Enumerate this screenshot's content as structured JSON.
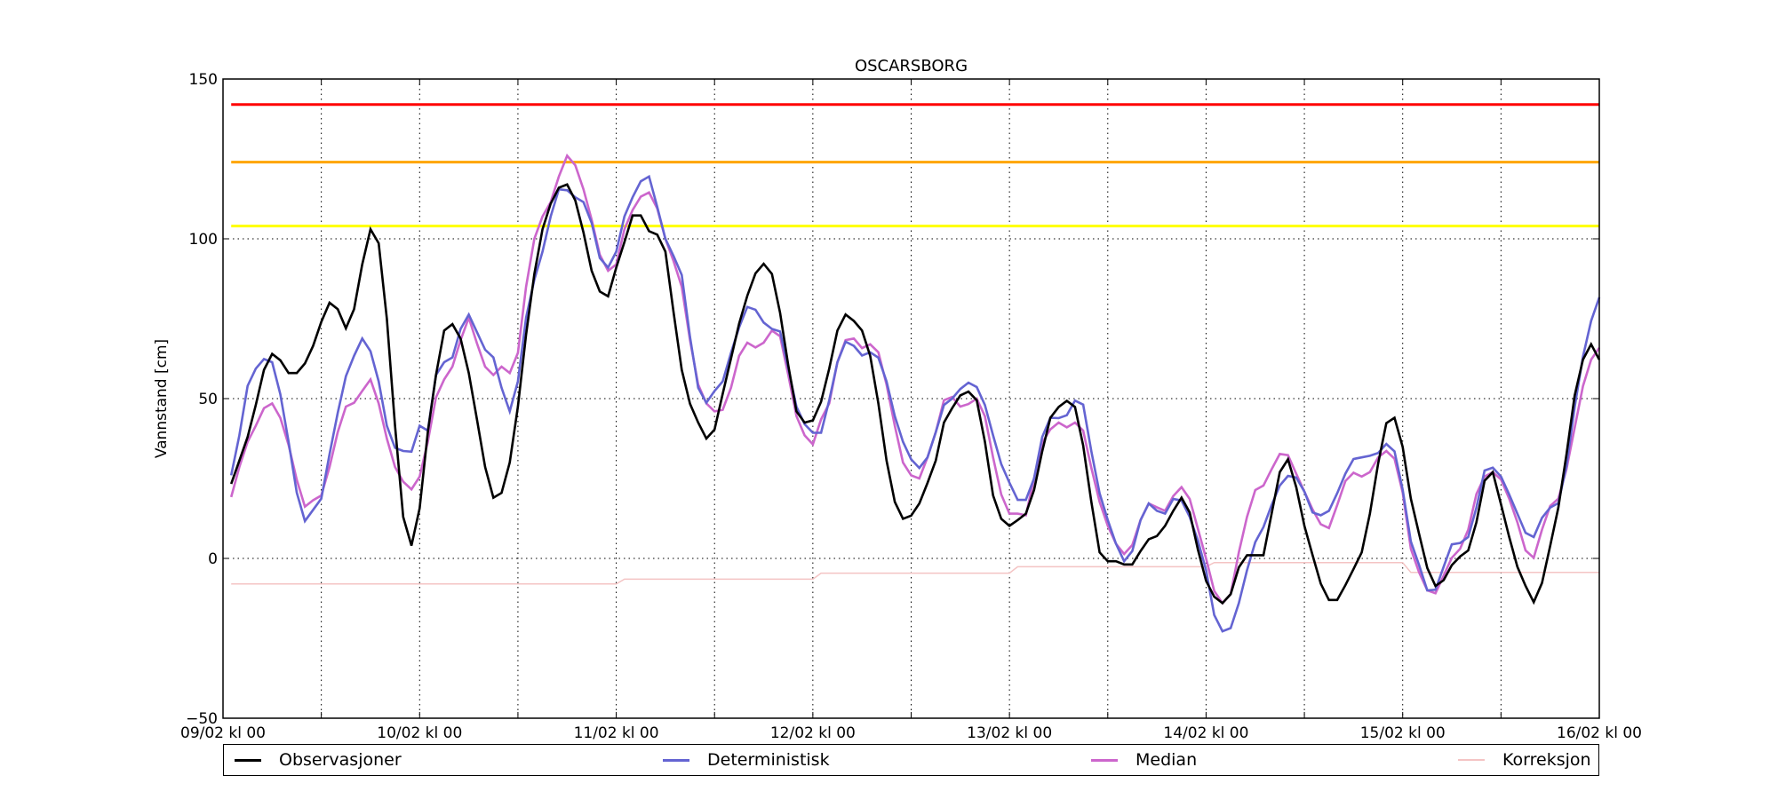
{
  "chart_data": {
    "type": "line",
    "title": "OSCARSBORG",
    "xlabel": "",
    "ylabel": "Vannstand [cm]",
    "ylim": [
      -50,
      150
    ],
    "xlim_hours": [
      0,
      168
    ],
    "x_unit": "hours since 09/02 kl 00 (hourly values, hour 1..168)",
    "grid": true,
    "y_ticks": [
      "150",
      "100",
      "50",
      "0",
      "−50"
    ],
    "y_tick_values": [
      150,
      100,
      50,
      0,
      -50
    ],
    "x_ticks": [
      "09/02 kl 00",
      "10/02 kl 00",
      "11/02 kl 00",
      "12/02 kl 00",
      "13/02 kl 00",
      "14/02 kl 00",
      "15/02 kl 00",
      "16/02 kl 00"
    ],
    "x_tick_hours": [
      0,
      24,
      48,
      72,
      96,
      120,
      144,
      168
    ],
    "thresholds": [
      {
        "value": 142,
        "color": "#ff0000"
      },
      {
        "value": 124,
        "color": "#ffa500"
      },
      {
        "value": 104,
        "color": "#ffff00"
      }
    ],
    "legend_position": "bottom",
    "series": [
      {
        "name": "Observasjoner",
        "color": "#000000",
        "start_hour": 1,
        "values": [
          23.3,
          30.6,
          38,
          48,
          59,
          64,
          62,
          58,
          58,
          61,
          66.5,
          74,
          80,
          78,
          72,
          78,
          92,
          103,
          98.6,
          75,
          41.5,
          13,
          4,
          15.7,
          39.5,
          57.4,
          71.3,
          73.3,
          68.8,
          58,
          43.5,
          28.6,
          19,
          20.5,
          30,
          47.5,
          70,
          89,
          103,
          111,
          116,
          117,
          112,
          102,
          90,
          83.5,
          82,
          91,
          99,
          107.3,
          107.3,
          102.4,
          101.3,
          96,
          77,
          59,
          48.4,
          42.5,
          37.5,
          40.3,
          51.5,
          62.5,
          73.5,
          82.2,
          89.2,
          92.2,
          89,
          76.8,
          60.4,
          46,
          42.5,
          43.2,
          49,
          59.4,
          71.3,
          76.3,
          74.3,
          71.3,
          63.4,
          48.5,
          30.6,
          17.7,
          12.4,
          13.4,
          17.2,
          23.6,
          30.6,
          42.5,
          47,
          51,
          52.2,
          49.5,
          36.5,
          19.7,
          12.4,
          10.2,
          12,
          14,
          21.4,
          33.5,
          44,
          47.4,
          49.3,
          47.4,
          35.3,
          17.7,
          1.9,
          -0.9,
          -0.9,
          -1.9,
          -1.9,
          2.3,
          6,
          7,
          10.2,
          14.9,
          19,
          14.4,
          2.8,
          -7,
          -12,
          -14,
          -11.2,
          -2.8,
          1,
          1,
          1,
          14,
          27,
          31,
          22.3,
          10.2,
          1,
          -7.9,
          -13,
          -13,
          -8.4,
          -3.3,
          1.9,
          14,
          29.7,
          42.3,
          44,
          34.9,
          18.7,
          7.6,
          -3,
          -8.6,
          -6.8,
          -2.1,
          0.6,
          2.5,
          11.3,
          24.3,
          27,
          16.9,
          6.7,
          -2.6,
          -8.6,
          -13.7,
          -7.7,
          3.9,
          15.9,
          32.6,
          51,
          62.2,
          67,
          62.2
        ]
      },
      {
        "name": "Deterministisk",
        "color": "#6464d2",
        "start_hour": 1,
        "values": [
          26,
          38.5,
          54,
          59.4,
          62.4,
          61.4,
          51.4,
          36.5,
          20.6,
          11.7,
          15.2,
          18.7,
          32.6,
          45.5,
          57,
          63.4,
          68.8,
          64.8,
          55.4,
          41.5,
          34.6,
          33.6,
          33.4,
          41.5,
          40,
          57.4,
          61.4,
          62.9,
          71.8,
          76.3,
          70.8,
          65.3,
          62.9,
          53.4,
          46,
          55.4,
          75.3,
          87.2,
          96,
          107,
          115.5,
          115.2,
          113,
          111.5,
          105,
          94,
          91,
          96,
          107,
          113,
          118,
          119.5,
          110,
          100,
          94.6,
          88.7,
          69.3,
          53.4,
          48.7,
          52.4,
          55.4,
          64.3,
          72.3,
          78.7,
          77.8,
          73.8,
          71.8,
          71,
          59.4,
          47.5,
          42,
          39.3,
          39.3,
          49.5,
          61.4,
          67.8,
          66.5,
          63.5,
          64.5,
          62.8,
          55.4,
          44.5,
          36.5,
          31,
          28.3,
          31.6,
          39.5,
          48,
          50,
          53,
          55,
          53.6,
          48,
          38.5,
          29.5,
          23.7,
          18.3,
          18.3,
          25,
          38,
          44,
          43.9,
          44.8,
          49.4,
          48.1,
          33.5,
          20.4,
          12,
          4.6,
          -0.9,
          2.3,
          12,
          17.2,
          14.9,
          14,
          18.6,
          18.1,
          13,
          5.6,
          -3.7,
          -17.7,
          -22.8,
          -21.8,
          -14,
          -3.7,
          5.1,
          9.8,
          16.7,
          22.8,
          25.8,
          25.3,
          20.9,
          14.4,
          13.5,
          14.9,
          20.4,
          26.5,
          31.1,
          31.6,
          32.1,
          33,
          35.8,
          33.5,
          21.5,
          5.3,
          -2.1,
          -10,
          -9.8,
          -2.6,
          4.4,
          4.8,
          6.7,
          15.9,
          27.5,
          28.4,
          25.6,
          20,
          14,
          8,
          6.7,
          12.7,
          15.9,
          17.3,
          28.9,
          47.4,
          63.1,
          74.3,
          81.7
        ]
      },
      {
        "name": "Median",
        "color": "#cc66cc",
        "start_hour": 1,
        "values": [
          19.2,
          28.6,
          36.5,
          41.5,
          47,
          48.5,
          44,
          35.5,
          24.6,
          16.2,
          18.2,
          19.7,
          28.6,
          39.5,
          47.5,
          48.7,
          52.4,
          56,
          48.5,
          37.5,
          28.6,
          24,
          21.6,
          25.6,
          36.5,
          50.4,
          56,
          60,
          68.3,
          75.3,
          67.3,
          60,
          57.4,
          60,
          58,
          64.3,
          85,
          100,
          107,
          111.5,
          119.5,
          126,
          123,
          115.5,
          106,
          95,
          90,
          92,
          103,
          109,
          113.2,
          114.5,
          109.5,
          100,
          93,
          85,
          68.3,
          54.4,
          48.5,
          46,
          46.5,
          53.4,
          63.4,
          67.5,
          66,
          67.5,
          71.3,
          69.5,
          57.4,
          44.5,
          38.5,
          35.7,
          43.5,
          48.5,
          61.4,
          68.3,
          68.8,
          65.8,
          67,
          64.5,
          54.4,
          41.5,
          30,
          26,
          25,
          31.6,
          39.5,
          49.5,
          50.5,
          47.5,
          48.3,
          50,
          44.5,
          31.6,
          20,
          14,
          14,
          13.5,
          25,
          36.2,
          40.4,
          42.5,
          41,
          42.5,
          40,
          28.3,
          17.7,
          10.2,
          4.6,
          1.4,
          4.2,
          12,
          17.2,
          16,
          14.9,
          19.5,
          22.3,
          18.6,
          9.3,
          0,
          -10.2,
          -14,
          -11.2,
          1.9,
          13,
          21.4,
          22.8,
          27.9,
          32.7,
          32.3,
          26.5,
          20.9,
          15.3,
          10.7,
          9.5,
          16.7,
          24.2,
          26.8,
          25.6,
          27,
          31.6,
          33.6,
          31.2,
          20.6,
          3,
          -4.4,
          -10,
          -10.9,
          -5.4,
          0.2,
          3,
          9,
          20.1,
          25.6,
          27,
          24.7,
          18.7,
          11.3,
          2.5,
          0.2,
          9,
          16.4,
          18.7,
          28,
          40.9,
          53.9,
          62.2,
          65.9
        ]
      },
      {
        "name": "Korreksjon",
        "color": "#f4c4c4",
        "points": [
          [
            1,
            -8
          ],
          [
            48,
            -8
          ],
          [
            49,
            -6.5
          ],
          [
            72,
            -6.5
          ],
          [
            73,
            -4.6
          ],
          [
            96,
            -4.6
          ],
          [
            97,
            -2.6
          ],
          [
            120,
            -2.6
          ],
          [
            121,
            -1.3
          ],
          [
            144,
            -1.3
          ],
          [
            145,
            -4.4
          ],
          [
            168,
            -4.4
          ]
        ]
      }
    ]
  }
}
